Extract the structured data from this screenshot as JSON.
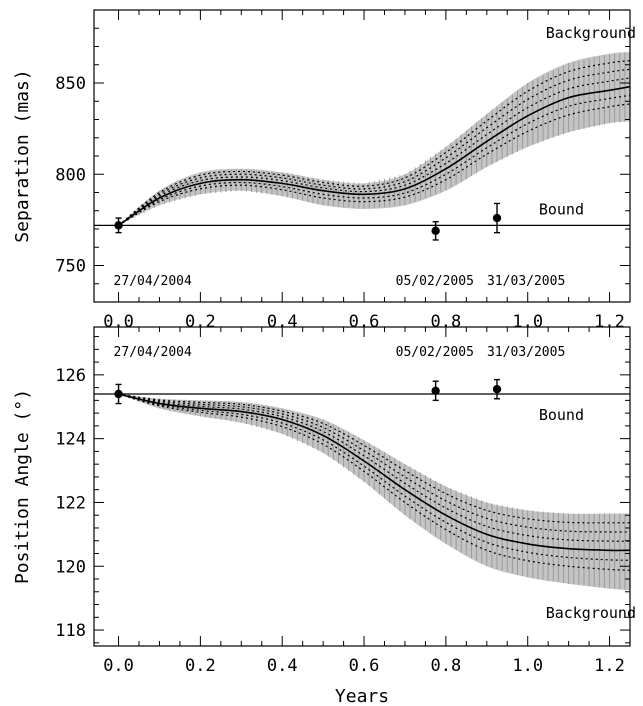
{
  "chart_data": [
    {
      "type": "line",
      "panel": "top",
      "ylabel": "Separation (mas)",
      "xlabel": "",
      "xlim": [
        -0.06,
        1.25
      ],
      "ylim": [
        730,
        890
      ],
      "xticks": [
        "0.0",
        "0.2",
        "0.4",
        "0.6",
        "0.8",
        "1.0",
        "1.2"
      ],
      "yticks": [
        "750",
        "800",
        "850"
      ],
      "annotations": {
        "background": "Background",
        "bound": "Bound",
        "dates": [
          "27/04/2004",
          "05/02/2005",
          "31/03/2005"
        ]
      },
      "bound_level": 772,
      "observations": [
        {
          "x": 0.0,
          "y": 772,
          "err": 4
        },
        {
          "x": 0.775,
          "y": 769,
          "err": 5
        },
        {
          "x": 0.925,
          "y": 776,
          "err": 8
        }
      ],
      "background_model": {
        "x": [
          0.0,
          0.1,
          0.2,
          0.3,
          0.4,
          0.5,
          0.6,
          0.7,
          0.8,
          0.9,
          1.0,
          1.1,
          1.2,
          1.25
        ],
        "y": [
          772,
          787,
          795,
          797,
          795,
          791,
          789,
          792,
          803,
          818,
          832,
          842,
          846,
          848
        ],
        "upper": [
          772,
          791,
          801,
          803,
          801,
          797,
          795,
          800,
          815,
          833,
          850,
          861,
          866,
          867
        ],
        "lower": [
          772,
          783,
          789,
          791,
          788,
          783,
          781,
          783,
          791,
          804,
          815,
          823,
          828,
          829
        ]
      }
    },
    {
      "type": "line",
      "panel": "bottom",
      "ylabel": "Position Angle (°)",
      "xlabel": "Years",
      "xlim": [
        -0.06,
        1.25
      ],
      "ylim": [
        117.5,
        127.5
      ],
      "xticks": [
        "0.0",
        "0.2",
        "0.4",
        "0.6",
        "0.8",
        "1.0",
        "1.2"
      ],
      "yticks": [
        "118",
        "120",
        "122",
        "124",
        "126"
      ],
      "annotations": {
        "background": "Background",
        "bound": "Bound",
        "dates": [
          "27/04/2004",
          "05/02/2005",
          "31/03/2005"
        ]
      },
      "bound_level": 125.4,
      "observations": [
        {
          "x": 0.0,
          "y": 125.4,
          "err": 0.3
        },
        {
          "x": 0.775,
          "y": 125.5,
          "err": 0.3
        },
        {
          "x": 0.925,
          "y": 125.55,
          "err": 0.3
        }
      ],
      "background_model": {
        "x": [
          0.0,
          0.1,
          0.2,
          0.3,
          0.4,
          0.5,
          0.6,
          0.7,
          0.8,
          0.9,
          1.0,
          1.1,
          1.2,
          1.25
        ],
        "y": [
          125.4,
          125.1,
          124.95,
          124.85,
          124.6,
          124.1,
          123.3,
          122.4,
          121.6,
          121.0,
          120.7,
          120.55,
          120.5,
          120.5
        ],
        "upper": [
          125.4,
          125.25,
          125.2,
          125.15,
          124.95,
          124.6,
          123.95,
          123.2,
          122.5,
          122.0,
          121.75,
          121.65,
          121.65,
          121.65
        ],
        "lower": [
          125.4,
          124.95,
          124.7,
          124.5,
          124.15,
          123.55,
          122.65,
          121.6,
          120.7,
          120.0,
          119.65,
          119.45,
          119.3,
          119.25
        ]
      }
    }
  ]
}
